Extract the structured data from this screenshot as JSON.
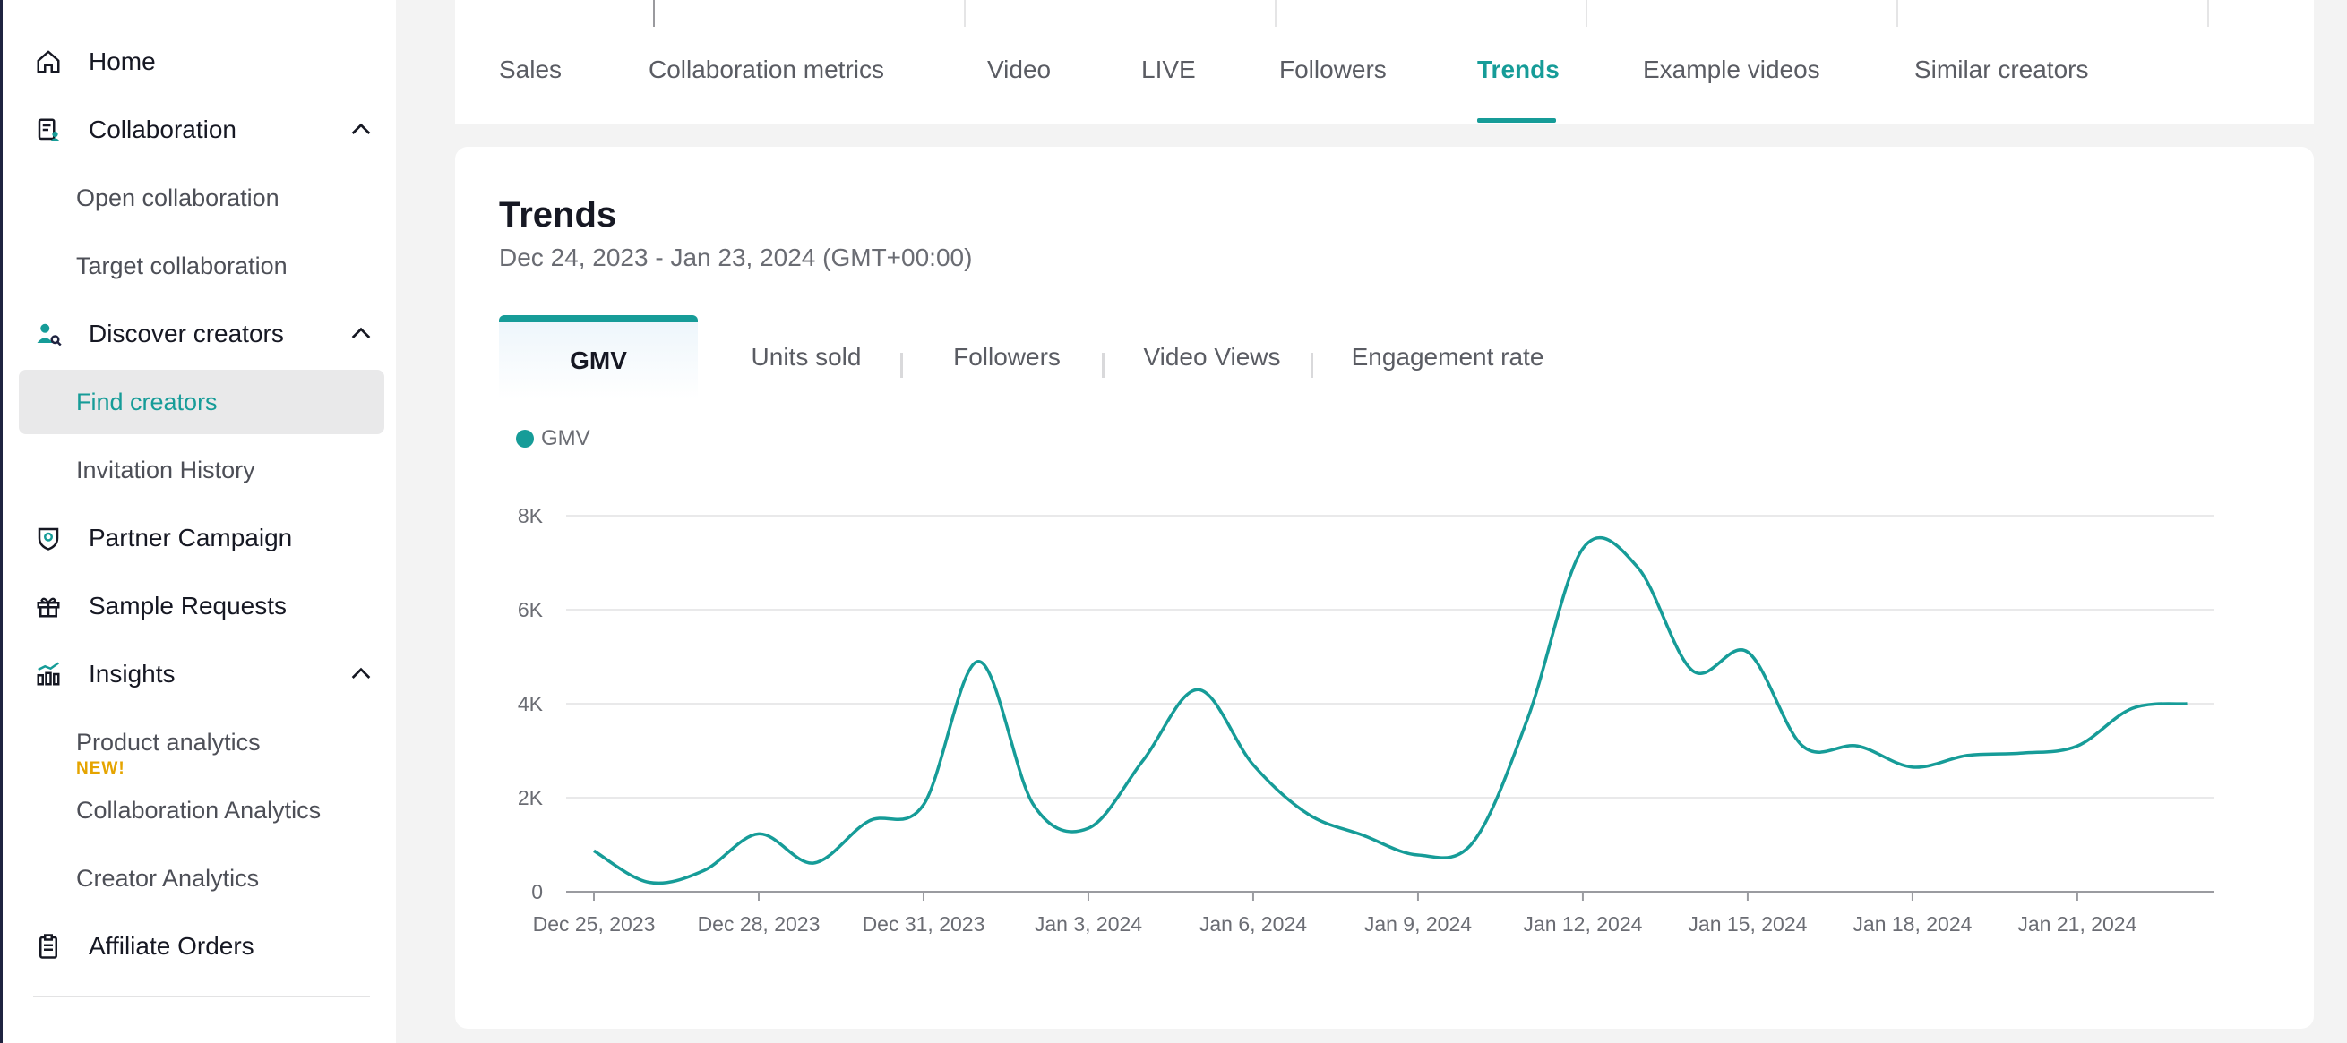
{
  "sidebar": {
    "home": "Home",
    "collaboration": "Collaboration",
    "open_collaboration": "Open collaboration",
    "target_collaboration": "Target collaboration",
    "discover_creators": "Discover creators",
    "find_creators": "Find creators",
    "invitation_history": "Invitation History",
    "partner_campaign": "Partner Campaign",
    "sample_requests": "Sample Requests",
    "insights": "Insights",
    "product_analytics": "Product analytics",
    "new_badge": "NEW!",
    "collaboration_analytics": "Collaboration Analytics",
    "creator_analytics": "Creator Analytics",
    "affiliate_orders": "Affiliate Orders"
  },
  "tabs": [
    "Sales",
    "Collaboration metrics",
    "Video",
    "LIVE",
    "Followers",
    "Trends",
    "Example videos",
    "Similar creators"
  ],
  "active_tab": "Trends",
  "card": {
    "title": "Trends",
    "date_range": "Dec 24, 2023 - Jan 23, 2024 (GMT+00:00)"
  },
  "metric_tabs": [
    "GMV",
    "Units sold",
    "Followers",
    "Video Views",
    "Engagement rate"
  ],
  "active_metric": "GMV",
  "colors": {
    "accent": "#169c98",
    "badge": "#e5a400"
  },
  "chart_data": {
    "type": "line",
    "series": [
      {
        "name": "GMV",
        "values": [
          870,
          200,
          450,
          1230,
          610,
          1500,
          1850,
          4900,
          1850,
          1350,
          2800,
          4300,
          2700,
          1650,
          1200,
          780,
          1050,
          3700,
          7300,
          6900,
          4700,
          5100,
          3100,
          3100,
          2650,
          2900,
          2950,
          3100,
          3900,
          4000
        ]
      }
    ],
    "x": [
      "Dec 25, 2023",
      "Dec 26, 2023",
      "Dec 27, 2023",
      "Dec 28, 2023",
      "Dec 29, 2023",
      "Dec 30, 2023",
      "Dec 31, 2023",
      "Jan 1, 2024",
      "Jan 2, 2024",
      "Jan 3, 2024",
      "Jan 4, 2024",
      "Jan 5, 2024",
      "Jan 6, 2024",
      "Jan 7, 2024",
      "Jan 8, 2024",
      "Jan 9, 2024",
      "Jan 10, 2024",
      "Jan 11, 2024",
      "Jan 12, 2024",
      "Jan 13, 2024",
      "Jan 14, 2024",
      "Jan 15, 2024",
      "Jan 16, 2024",
      "Jan 17, 2024",
      "Jan 18, 2024",
      "Jan 19, 2024",
      "Jan 20, 2024",
      "Jan 21, 2024",
      "Jan 22, 2024",
      "Jan 23, 2024"
    ],
    "x_tick_labels": [
      "Dec 25, 2023",
      "Dec 28, 2023",
      "Dec 31, 2023",
      "Jan 3, 2024",
      "Jan 6, 2024",
      "Jan 9, 2024",
      "Jan 12, 2024",
      "Jan 15, 2024",
      "Jan 18, 2024",
      "Jan 21, 2024"
    ],
    "y_tick_labels": [
      "0",
      "2K",
      "4K",
      "6K",
      "8K"
    ],
    "y_ticks": [
      0,
      2000,
      4000,
      6000,
      8000
    ],
    "ylim": [
      0,
      8000
    ],
    "grid": true,
    "legend": "top-left"
  }
}
